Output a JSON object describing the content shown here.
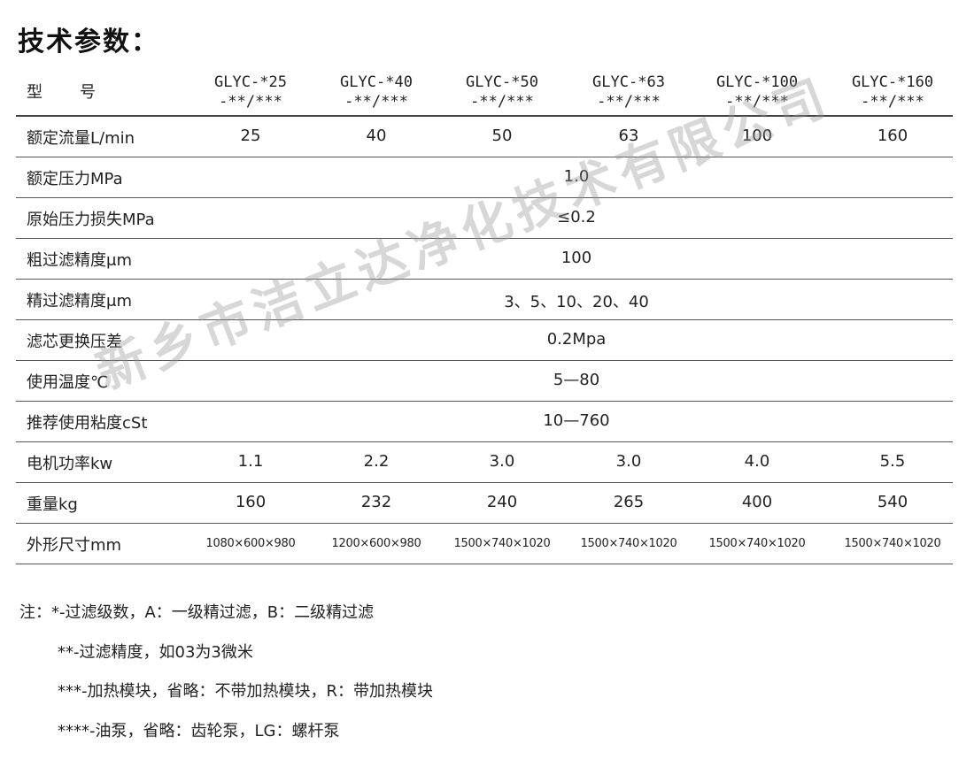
{
  "title": "技术参数：",
  "table": {
    "header_label": "型　　号",
    "models": [
      [
        "GLYC-*25",
        "-**/***"
      ],
      [
        "GLYC-*40",
        "-**/***"
      ],
      [
        "GLYC-*50",
        "-**/***"
      ],
      [
        "GLYC-*63",
        "-**/***"
      ],
      [
        "GLYC-*100",
        "-**/***"
      ],
      [
        "GLYC-*160",
        "-**/***"
      ]
    ],
    "rows": [
      {
        "label": "额定流量L/min",
        "values": [
          "25",
          "40",
          "50",
          "63",
          "100",
          "160"
        ]
      },
      {
        "label": "额定压力MPa",
        "span": "1.0"
      },
      {
        "label": "原始压力损失MPa",
        "span": "≤0.2"
      },
      {
        "label": "粗过滤精度μm",
        "span": "100"
      },
      {
        "label": "精过滤精度μm",
        "span": "3、5、10、20、40"
      },
      {
        "label": "滤芯更换压差",
        "span": "0.2Mpa"
      },
      {
        "label": "使用温度℃",
        "span": "5—80"
      },
      {
        "label": "推荐使用粘度cSt",
        "span": "10—760"
      },
      {
        "label": "电机功率kw",
        "values": [
          "1.1",
          "2.2",
          "3.0",
          "3.0",
          "4.0",
          "5.5"
        ]
      },
      {
        "label": "重量kg",
        "values": [
          "160",
          "232",
          "240",
          "265",
          "400",
          "540"
        ]
      },
      {
        "label": "外形尺寸mm",
        "small": true,
        "values": [
          "1080×600×980",
          "1200×600×980",
          "1500×740×1020",
          "1500×740×1020",
          "1500×740×1020",
          "1500×740×1020"
        ]
      }
    ]
  },
  "notes": [
    "注：*-过滤级数，A：一级精过滤，B：二级精过滤",
    "**-过滤精度，如03为3微米",
    "***-加热模块，省略：不带加热模块，R：带加热模块",
    "****-油泵，省略：齿轮泵，LG：螺杆泵"
  ],
  "watermark": "新乡市洁立达净化技术有限公司"
}
